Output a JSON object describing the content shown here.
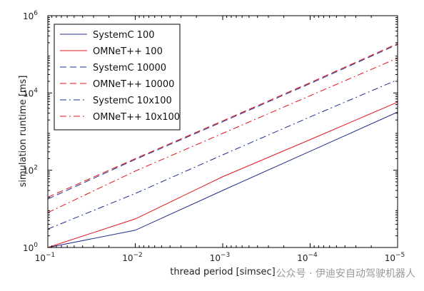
{
  "chart_data": {
    "type": "line",
    "xlabel": "thread period [simsec]",
    "ylabel": "simulation runtime [ms]",
    "x_scale": "log",
    "y_scale": "log",
    "x_reversed": true,
    "xlim": [
      0.1,
      1e-05
    ],
    "ylim": [
      1,
      1000000
    ],
    "x_ticks": [
      {
        "value": 0.1,
        "base": "10",
        "exp": "−1"
      },
      {
        "value": 0.01,
        "base": "10",
        "exp": "−2"
      },
      {
        "value": 0.001,
        "base": "10",
        "exp": "−3"
      },
      {
        "value": 0.0001,
        "base": "10",
        "exp": "−4"
      },
      {
        "value": 1e-05,
        "base": "10",
        "exp": "−5"
      }
    ],
    "y_ticks": [
      {
        "value": 1,
        "base": "10",
        "exp": "0"
      },
      {
        "value": 100,
        "base": "10",
        "exp": "2"
      },
      {
        "value": 10000,
        "base": "10",
        "exp": "4"
      },
      {
        "value": 1000000,
        "base": "10",
        "exp": "6"
      }
    ],
    "grid": false,
    "legend_position": "top-left",
    "series": [
      {
        "name": "SystemC 100",
        "color": "#1f2f8c",
        "dash": "solid",
        "x": [
          0.1,
          0.01,
          0.001,
          0.0001,
          1e-05
        ],
        "y": [
          1,
          2.8,
          30,
          310,
          3200
        ]
      },
      {
        "name": "OMNeT++ 100",
        "color": "#e0141e",
        "dash": "solid",
        "x": [
          0.1,
          0.01,
          0.001,
          0.0001,
          1e-05
        ],
        "y": [
          1,
          5.5,
          68,
          620,
          5800
        ]
      },
      {
        "name": "SystemC 10000",
        "color": "#1f2f8c",
        "dash": "dashed",
        "x": [
          0.1,
          0.01,
          0.001,
          0.0001,
          1e-05
        ],
        "y": [
          18,
          190,
          1800,
          17500,
          180000
        ]
      },
      {
        "name": "OMNeT++ 10000",
        "color": "#e0141e",
        "dash": "dashed",
        "x": [
          0.1,
          0.01,
          0.001,
          0.0001,
          1e-05
        ],
        "y": [
          20,
          200,
          1900,
          18500,
          190000
        ]
      },
      {
        "name": "SystemC 10x100",
        "color": "#1f2f8c",
        "dash": "dashdot",
        "x": [
          0.1,
          0.01,
          0.001,
          0.0001,
          1e-05
        ],
        "y": [
          3,
          25,
          250,
          2400,
          22000
        ]
      },
      {
        "name": "OMNeT++ 10x100",
        "color": "#e0141e",
        "dash": "dashdot",
        "x": [
          0.1,
          0.01,
          0.001,
          0.0001,
          1e-05
        ],
        "y": [
          8,
          95,
          900,
          8500,
          80000
        ]
      }
    ]
  },
  "watermark": "公众号 · 伊迪安自动驾驶机器人"
}
